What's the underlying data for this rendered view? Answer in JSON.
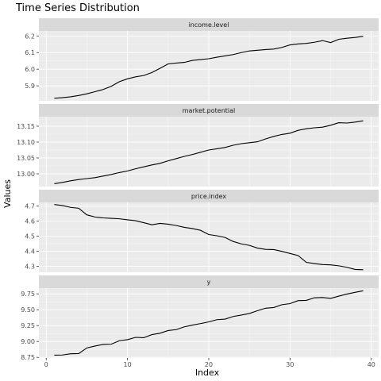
{
  "chart_data": {
    "type": "line",
    "title": "Time Series Distribution",
    "xlabel": "Index",
    "ylabel": "Values",
    "grid": true,
    "x_ticks": [
      0,
      10,
      20,
      30,
      40
    ],
    "xlim": [
      -0.9,
      40.9
    ],
    "x": [
      1,
      2,
      3,
      4,
      5,
      6,
      7,
      8,
      9,
      10,
      11,
      12,
      13,
      14,
      15,
      16,
      17,
      18,
      19,
      20,
      21,
      22,
      23,
      24,
      25,
      26,
      27,
      28,
      29,
      30,
      31,
      32,
      33,
      34,
      35,
      36,
      37,
      38,
      39
    ],
    "panels": [
      {
        "name": "income.level",
        "ylim": [
          5.81,
          6.23
        ],
        "y_ticks": [
          5.9,
          6.0,
          6.1,
          6.2
        ],
        "y_tick_labels": [
          "5.9",
          "6.0",
          "6.1",
          "6.2"
        ],
        "values": [
          5.825,
          5.829,
          5.834,
          5.842,
          5.852,
          5.865,
          5.878,
          5.897,
          5.925,
          5.942,
          5.954,
          5.962,
          5.98,
          6.005,
          6.032,
          6.037,
          6.041,
          6.053,
          6.058,
          6.063,
          6.072,
          6.08,
          6.088,
          6.1,
          6.11,
          6.114,
          6.118,
          6.121,
          6.131,
          6.146,
          6.152,
          6.155,
          6.162,
          6.172,
          6.16,
          6.18,
          6.186,
          6.191,
          6.198
        ]
      },
      {
        "name": "market.potential",
        "ylim": [
          12.96,
          13.18
        ],
        "y_ticks": [
          13.0,
          13.05,
          13.1,
          13.15
        ],
        "y_tick_labels": [
          "13.00",
          "13.05",
          "13.10",
          "13.15"
        ],
        "values": [
          12.969,
          12.973,
          12.978,
          12.982,
          12.985,
          12.988,
          12.993,
          12.998,
          13.004,
          13.009,
          13.016,
          13.022,
          13.028,
          13.033,
          13.041,
          13.048,
          13.055,
          13.061,
          13.068,
          13.075,
          13.079,
          13.083,
          13.09,
          13.095,
          13.098,
          13.101,
          13.11,
          13.118,
          13.124,
          13.128,
          13.137,
          13.142,
          13.145,
          13.147,
          13.153,
          13.161,
          13.16,
          13.163,
          13.167
        ]
      },
      {
        "name": "price.index",
        "ylim": [
          4.26,
          4.725
        ],
        "y_ticks": [
          4.3,
          4.4,
          4.5,
          4.6,
          4.7
        ],
        "y_tick_labels": [
          "4.3",
          "4.4",
          "4.5",
          "4.6",
          "4.7"
        ],
        "values": [
          4.711,
          4.704,
          4.692,
          4.686,
          4.642,
          4.628,
          4.622,
          4.619,
          4.616,
          4.609,
          4.603,
          4.59,
          4.576,
          4.585,
          4.58,
          4.571,
          4.559,
          4.551,
          4.539,
          4.511,
          4.503,
          4.492,
          4.465,
          4.449,
          4.439,
          4.421,
          4.412,
          4.411,
          4.399,
          4.385,
          4.371,
          4.326,
          4.318,
          4.311,
          4.309,
          4.303,
          4.293,
          4.279,
          4.277
        ]
      },
      {
        "name": "y",
        "ylim": [
          8.74,
          9.84
        ],
        "y_ticks": [
          8.75,
          9.0,
          9.25,
          9.5,
          9.75
        ],
        "y_tick_labels": [
          "8.75",
          "9.00",
          "9.25",
          "9.50",
          "9.75"
        ],
        "values": [
          8.785,
          8.787,
          8.806,
          8.809,
          8.898,
          8.928,
          8.953,
          8.957,
          9.012,
          9.028,
          9.065,
          9.059,
          9.108,
          9.13,
          9.172,
          9.187,
          9.231,
          9.258,
          9.282,
          9.309,
          9.343,
          9.352,
          9.393,
          9.416,
          9.441,
          9.485,
          9.524,
          9.535,
          9.579,
          9.596,
          9.644,
          9.647,
          9.688,
          9.692,
          9.679,
          9.714,
          9.747,
          9.774,
          9.799
        ]
      }
    ]
  }
}
